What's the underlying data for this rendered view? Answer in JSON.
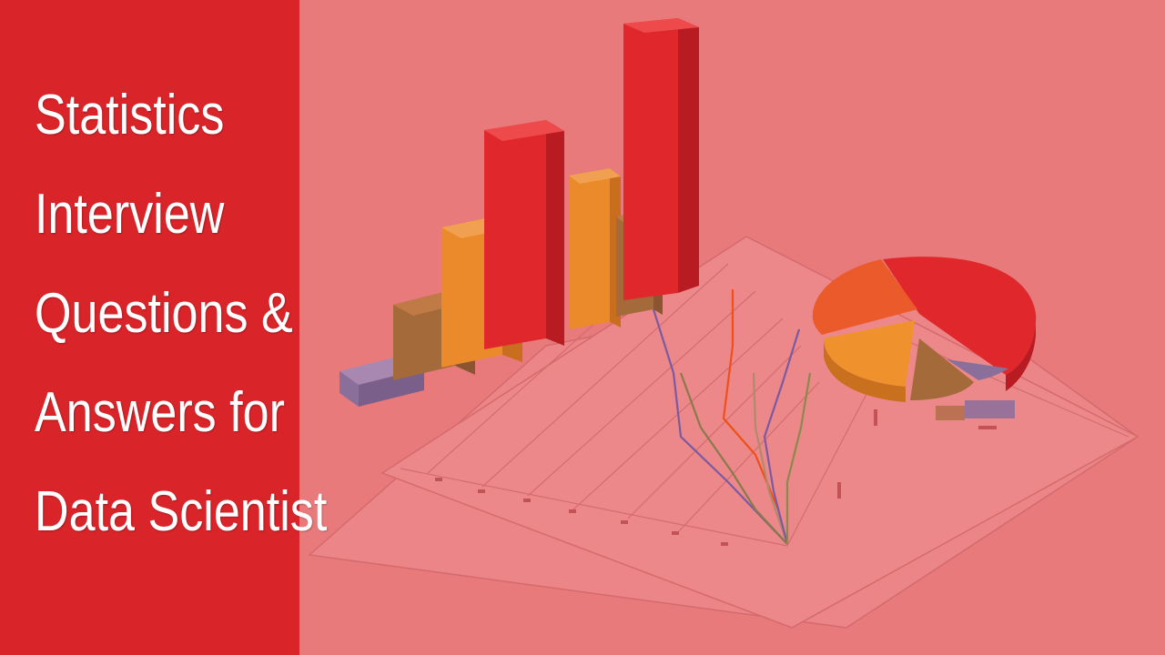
{
  "headline": {
    "lines": [
      "Statistics",
      "Interview",
      "Questions &",
      "Answers for",
      "Data Scientist"
    ]
  },
  "illustration": {
    "description_icon": "3d-charts-illustration",
    "colors": {
      "background": "#e87a7c",
      "panel": "#d9242a",
      "bar_red": "#e0282c",
      "bar_orange": "#ea8a2a",
      "bar_olive": "#a56a3a",
      "bar_purple": "#8a6f9a"
    }
  }
}
